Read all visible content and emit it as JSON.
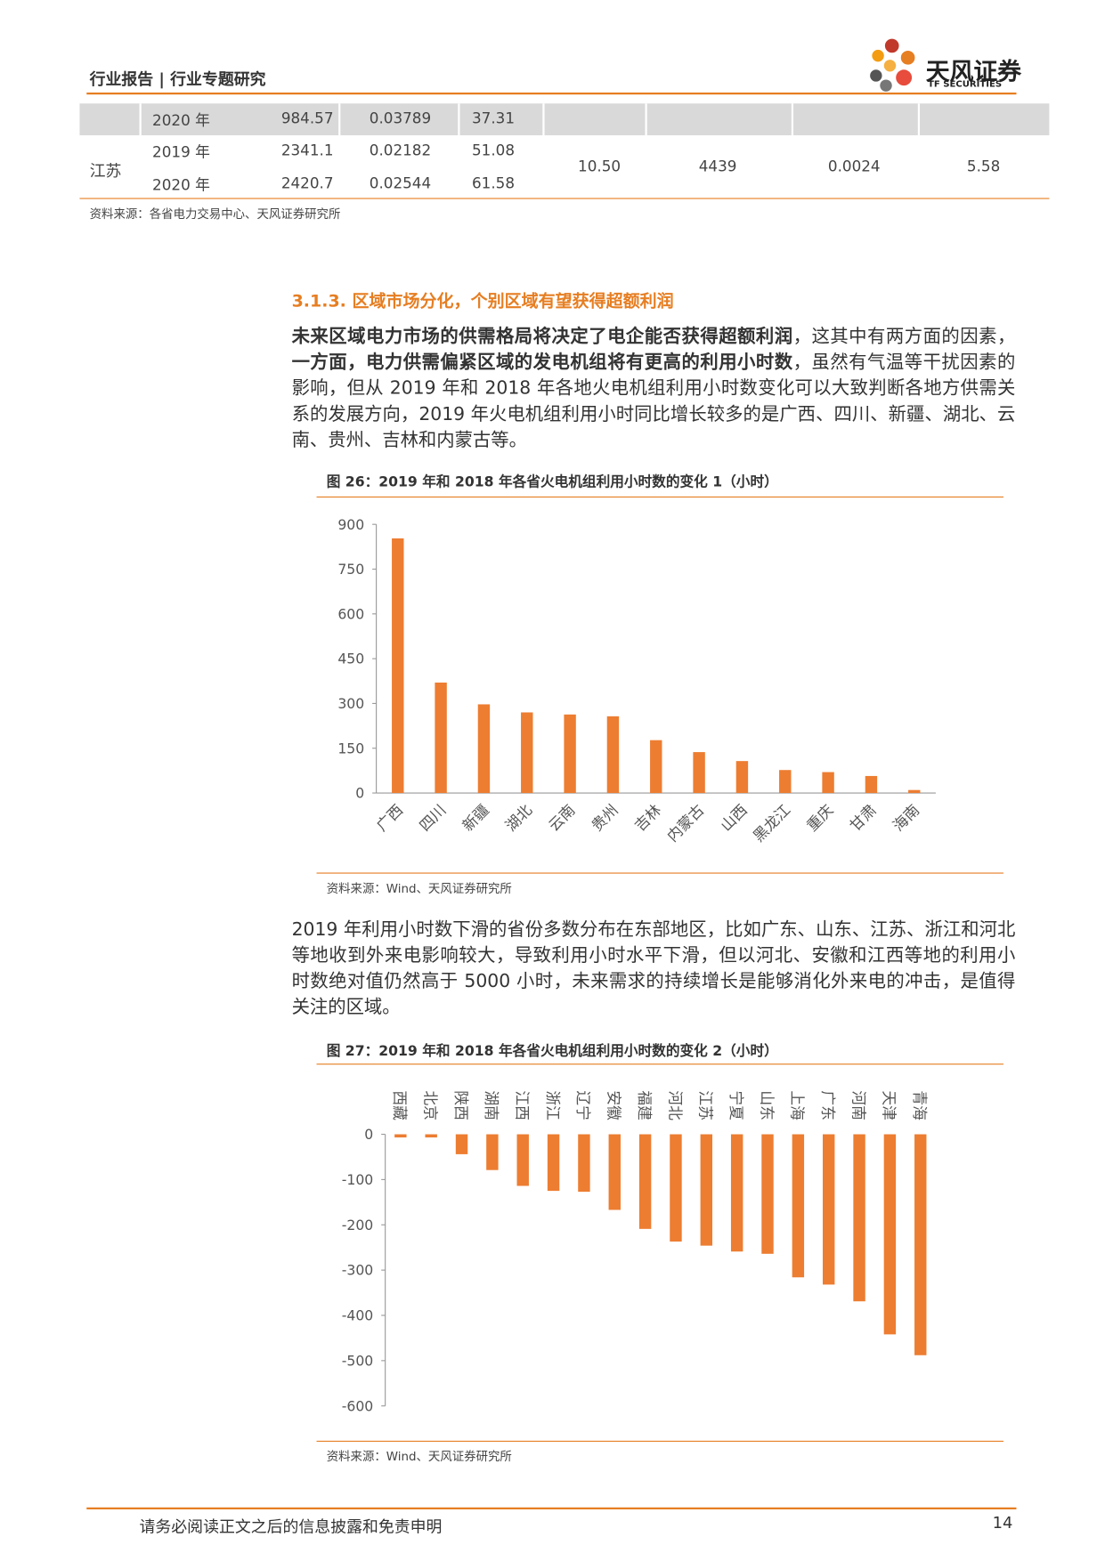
{
  "header": {
    "left": "行业报告 | 行业专题研究",
    "logo": "天风证券",
    "logo_en": "TF SECURITIES"
  },
  "table": {
    "rows": [
      {
        "year": "2020 年",
        "values": [
          "984.57",
          "0.03789",
          "37.31"
        ]
      },
      {
        "region": "江苏",
        "years": [
          {
            "year": "2019 年",
            "values": [
              "2341.1",
              "0.02182",
              "51.08"
            ]
          },
          {
            "year": "2020 年",
            "values": [
              "2420.7",
              "0.02544",
              "61.58"
            ]
          }
        ],
        "merged": [
          "10.50",
          "4439",
          "0.0024",
          "5.58"
        ]
      }
    ],
    "source": "资料来源：各省电力交易中心、天风证券研究所"
  },
  "section": {
    "heading": "3.1.3. 区域市场分化，个别区域有望获得超额利润"
  },
  "paragraphs": [
    [
      {
        "text": "未来区域电力市场的供需格局将决定了电企能否获得超额利润",
        "bold": true
      },
      {
        "text": "，这其中有两方面的因素，",
        "bold": false
      },
      {
        "text": "一方面，电力供需偏紧区域的发电机组将有更高的利用小时数",
        "bold": true
      },
      {
        "text": "，虽然有气温等干扰因素的影响，但从 2019 年和 2018 年各地火电机组利用小时数变化可以大致判断各地方供需关系的发展方向，2019 年火电机组利用小时同比增长较多的是广西、四川、新疆、湖北、云南、贵州、吉林和内蒙古等。",
        "bold": false
      }
    ],
    [
      {
        "text": "2019 年利用小时数下滑的省份多数分布在东部地区，比如广东、山东、江苏、浙江和河北等地收到外来电影响较大，导致利用小时水平下滑，但以河北、安徽和江西等地的利用小时数绝对值仍然高于 5000 小时，未来需求的持续增长是能够消化外来电的冲击，是值得关注的区域。",
        "bold": false
      }
    ]
  ],
  "chart_data": [
    {
      "type": "bar",
      "title": "图 26：2019 年和 2018 年各省火电机组利用小时数的变化 1（小时）",
      "source": "资料来源：Wind、天风证券研究所",
      "color": "#ed7d31",
      "categories": [
        "广西",
        "四川",
        "新疆",
        "湖北",
        "云南",
        "贵州",
        "吉林",
        "内蒙古",
        "山西",
        "黑龙江",
        "重庆",
        "甘肃",
        "海南"
      ],
      "values": [
        853,
        370,
        297,
        270,
        263,
        257,
        177,
        137,
        107,
        77,
        70,
        57,
        10
      ],
      "ylim": [
        0,
        900
      ],
      "yticks": [
        0,
        150,
        300,
        450,
        600,
        750,
        900
      ]
    },
    {
      "type": "bar",
      "title": "图 27：2019 年和 2018 年各省火电机组利用小时数的变化 2（小时）",
      "source": "资料来源：Wind、天风证券研究所",
      "color": "#ed7d31",
      "categories": [
        "西藏",
        "北京",
        "陕西",
        "湖南",
        "江西",
        "浙江",
        "辽宁",
        "安徽",
        "福建",
        "河北",
        "江苏",
        "宁夏",
        "山东",
        "上海",
        "广东",
        "河南",
        "天津",
        "青海"
      ],
      "values": [
        -7,
        -7,
        -44,
        -79,
        -114,
        -125,
        -127,
        -167,
        -209,
        -237,
        -246,
        -259,
        -264,
        -316,
        -332,
        -369,
        -442,
        -488
      ],
      "ylim": [
        -600,
        0
      ],
      "yticks": [
        0,
        -100,
        -200,
        -300,
        -400,
        -500,
        -600
      ]
    }
  ],
  "footer": {
    "disclaimer": "请务必阅读正文之后的信息披露和免责申明",
    "page": "14"
  }
}
